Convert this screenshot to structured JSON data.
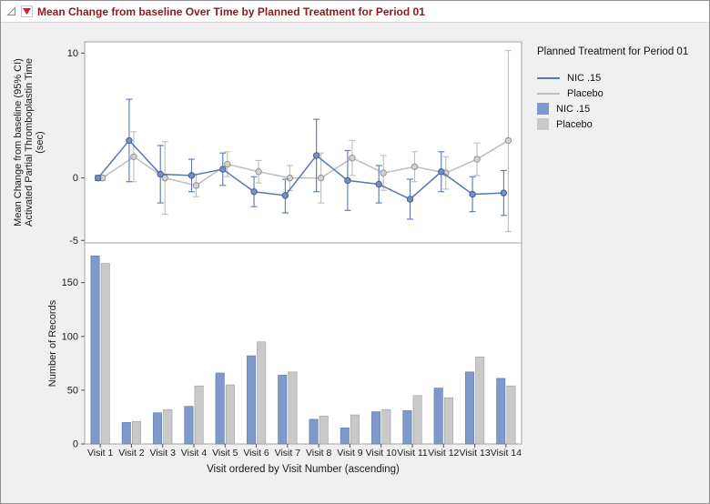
{
  "window": {
    "title": "Mean Change from baseline Over Time by Planned Treatment for Period 01"
  },
  "legend": {
    "title": "Planned Treatment for Period 01"
  },
  "chart_data": [
    {
      "type": "line",
      "error_bars": "95% CI",
      "ylabel_lines": [
        "Mean Change from baseline (95% CI)",
        "Activated Partial Thromboplastin Time",
        "(sec)"
      ],
      "x_categories": [
        "Visit 1",
        "Visit 2",
        "Visit 3",
        "Visit 4",
        "Visit 5",
        "Visit 6",
        "Visit 7",
        "Visit 8",
        "Visit 9",
        "Visit 10",
        "Visit 11",
        "Visit 12",
        "Visit 13",
        "Visit 14"
      ],
      "ylim": [
        -5.2,
        10.9
      ],
      "yticks": [
        10,
        0,
        -5
      ],
      "series": [
        {
          "name": "NIC .15",
          "color": "#5977b2",
          "marker_fill": "#7490c4",
          "edge": "#44618f",
          "values": [
            0.0,
            3.0,
            0.3,
            0.2,
            0.7,
            -1.1,
            -1.4,
            1.8,
            -0.2,
            -0.5,
            -1.7,
            0.5,
            -1.3,
            -1.2
          ],
          "ci_low": [
            -0.2,
            -0.3,
            -2.0,
            -1.1,
            -0.6,
            -2.3,
            -2.8,
            -1.1,
            -2.6,
            -2.0,
            -3.3,
            -1.1,
            -2.7,
            -3.0
          ],
          "ci_high": [
            0.2,
            6.3,
            2.6,
            1.5,
            2.0,
            0.1,
            -0.1,
            4.7,
            2.2,
            1.0,
            -0.1,
            2.1,
            0.1,
            0.6
          ]
        },
        {
          "name": "Placebo",
          "color": "#bdbdbd",
          "marker_fill": "#d2d2d2",
          "edge": "#949494",
          "values": [
            0.0,
            1.7,
            0.0,
            -0.6,
            1.1,
            0.5,
            0.0,
            0.0,
            1.6,
            0.4,
            0.9,
            0.4,
            1.5,
            3.0
          ],
          "ci_low": [
            -0.2,
            -0.3,
            -2.9,
            -1.5,
            0.1,
            -0.4,
            -1.0,
            -2.0,
            0.2,
            -1.0,
            -0.3,
            -0.9,
            0.2,
            -4.3
          ],
          "ci_high": [
            0.2,
            3.7,
            2.9,
            0.3,
            2.1,
            1.4,
            1.0,
            2.0,
            3.0,
            1.8,
            2.1,
            1.7,
            2.8,
            10.2
          ]
        }
      ]
    },
    {
      "type": "bar",
      "ylabel": "Number of Records",
      "xlabel": "Visit ordered by Visit Number (ascending)",
      "ylim": [
        0,
        187
      ],
      "yticks": [
        0,
        50,
        100,
        150
      ],
      "series": [
        {
          "name": "NIC .15",
          "color": "#7e99cb",
          "edge": "#63799f",
          "values": [
            175,
            20,
            29,
            35,
            66,
            82,
            64,
            23,
            15,
            30,
            31,
            52,
            67,
            61
          ]
        },
        {
          "name": "Placebo",
          "color": "#c9c9c9",
          "edge": "#a0a0a0",
          "values": [
            168,
            21,
            32,
            54,
            55,
            95,
            67,
            26,
            27,
            32,
            45,
            43,
            81,
            54
          ]
        }
      ]
    }
  ]
}
